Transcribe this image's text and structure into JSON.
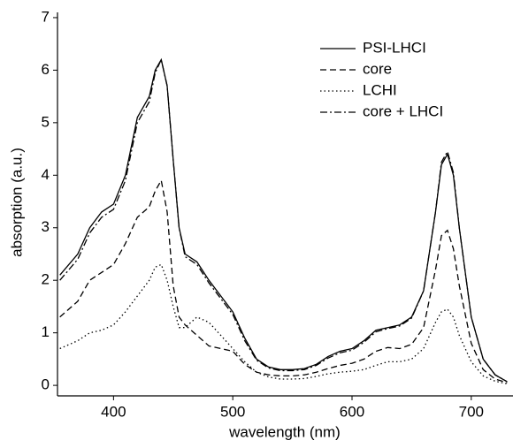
{
  "chart_data": {
    "type": "line",
    "x_label": "wavelength (nm)",
    "y_label": "absorption (a.u.)",
    "xlim": [
      353,
      735
    ],
    "xticks": [
      400,
      500,
      600,
      700
    ],
    "ylim": [
      -0.2,
      7.1
    ],
    "yticks": [
      0,
      1,
      2,
      3,
      4,
      5,
      6,
      7
    ],
    "legend": "top-right",
    "x": [
      355,
      370,
      380,
      390,
      400,
      410,
      420,
      430,
      435,
      440,
      445,
      450,
      455,
      460,
      470,
      480,
      490,
      500,
      510,
      520,
      530,
      540,
      550,
      560,
      570,
      580,
      590,
      600,
      610,
      620,
      630,
      640,
      650,
      660,
      670,
      675,
      680,
      685,
      690,
      700,
      710,
      720,
      730
    ],
    "series": [
      {
        "name": "PSI-LHCI",
        "color": "#000000",
        "linestyle": "solid",
        "values": [
          2.1,
          2.5,
          3.0,
          3.3,
          3.45,
          4.0,
          5.1,
          5.5,
          6.0,
          6.2,
          5.7,
          4.3,
          3.0,
          2.5,
          2.35,
          2.0,
          1.7,
          1.4,
          0.9,
          0.5,
          0.35,
          0.3,
          0.3,
          0.32,
          0.4,
          0.55,
          0.65,
          0.7,
          0.85,
          1.05,
          1.1,
          1.15,
          1.3,
          1.8,
          3.3,
          4.2,
          4.4,
          4.0,
          3.0,
          1.3,
          0.5,
          0.2,
          0.07
        ]
      },
      {
        "name": "core",
        "color": "#000000",
        "linestyle": "dashed",
        "values": [
          1.3,
          1.6,
          2.0,
          2.15,
          2.3,
          2.7,
          3.2,
          3.4,
          3.7,
          3.9,
          3.3,
          1.9,
          1.3,
          1.15,
          0.95,
          0.75,
          0.7,
          0.65,
          0.4,
          0.25,
          0.2,
          0.18,
          0.18,
          0.2,
          0.25,
          0.32,
          0.38,
          0.42,
          0.5,
          0.65,
          0.72,
          0.7,
          0.78,
          1.1,
          2.2,
          2.85,
          2.95,
          2.6,
          1.9,
          0.8,
          0.3,
          0.12,
          0.05
        ]
      },
      {
        "name": "LCHI",
        "color": "#000000",
        "linestyle": "dotted",
        "values": [
          0.7,
          0.85,
          1.0,
          1.05,
          1.15,
          1.4,
          1.7,
          2.0,
          2.25,
          2.3,
          2.0,
          1.5,
          1.1,
          1.1,
          1.3,
          1.2,
          0.95,
          0.7,
          0.45,
          0.25,
          0.16,
          0.12,
          0.12,
          0.13,
          0.17,
          0.22,
          0.25,
          0.27,
          0.3,
          0.38,
          0.45,
          0.45,
          0.5,
          0.7,
          1.2,
          1.4,
          1.45,
          1.3,
          0.95,
          0.45,
          0.18,
          0.08,
          0.03
        ]
      },
      {
        "name": "core + LHCI",
        "color": "#000000",
        "linestyle": "dashdot",
        "values": [
          2.0,
          2.4,
          2.9,
          3.2,
          3.35,
          3.9,
          5.0,
          5.4,
          5.95,
          6.2,
          5.7,
          4.3,
          3.0,
          2.45,
          2.3,
          1.95,
          1.65,
          1.35,
          0.85,
          0.48,
          0.33,
          0.28,
          0.28,
          0.3,
          0.38,
          0.52,
          0.62,
          0.67,
          0.82,
          1.02,
          1.08,
          1.13,
          1.28,
          1.8,
          3.3,
          4.25,
          4.45,
          4.05,
          3.0,
          1.3,
          0.5,
          0.2,
          0.07
        ]
      }
    ]
  }
}
